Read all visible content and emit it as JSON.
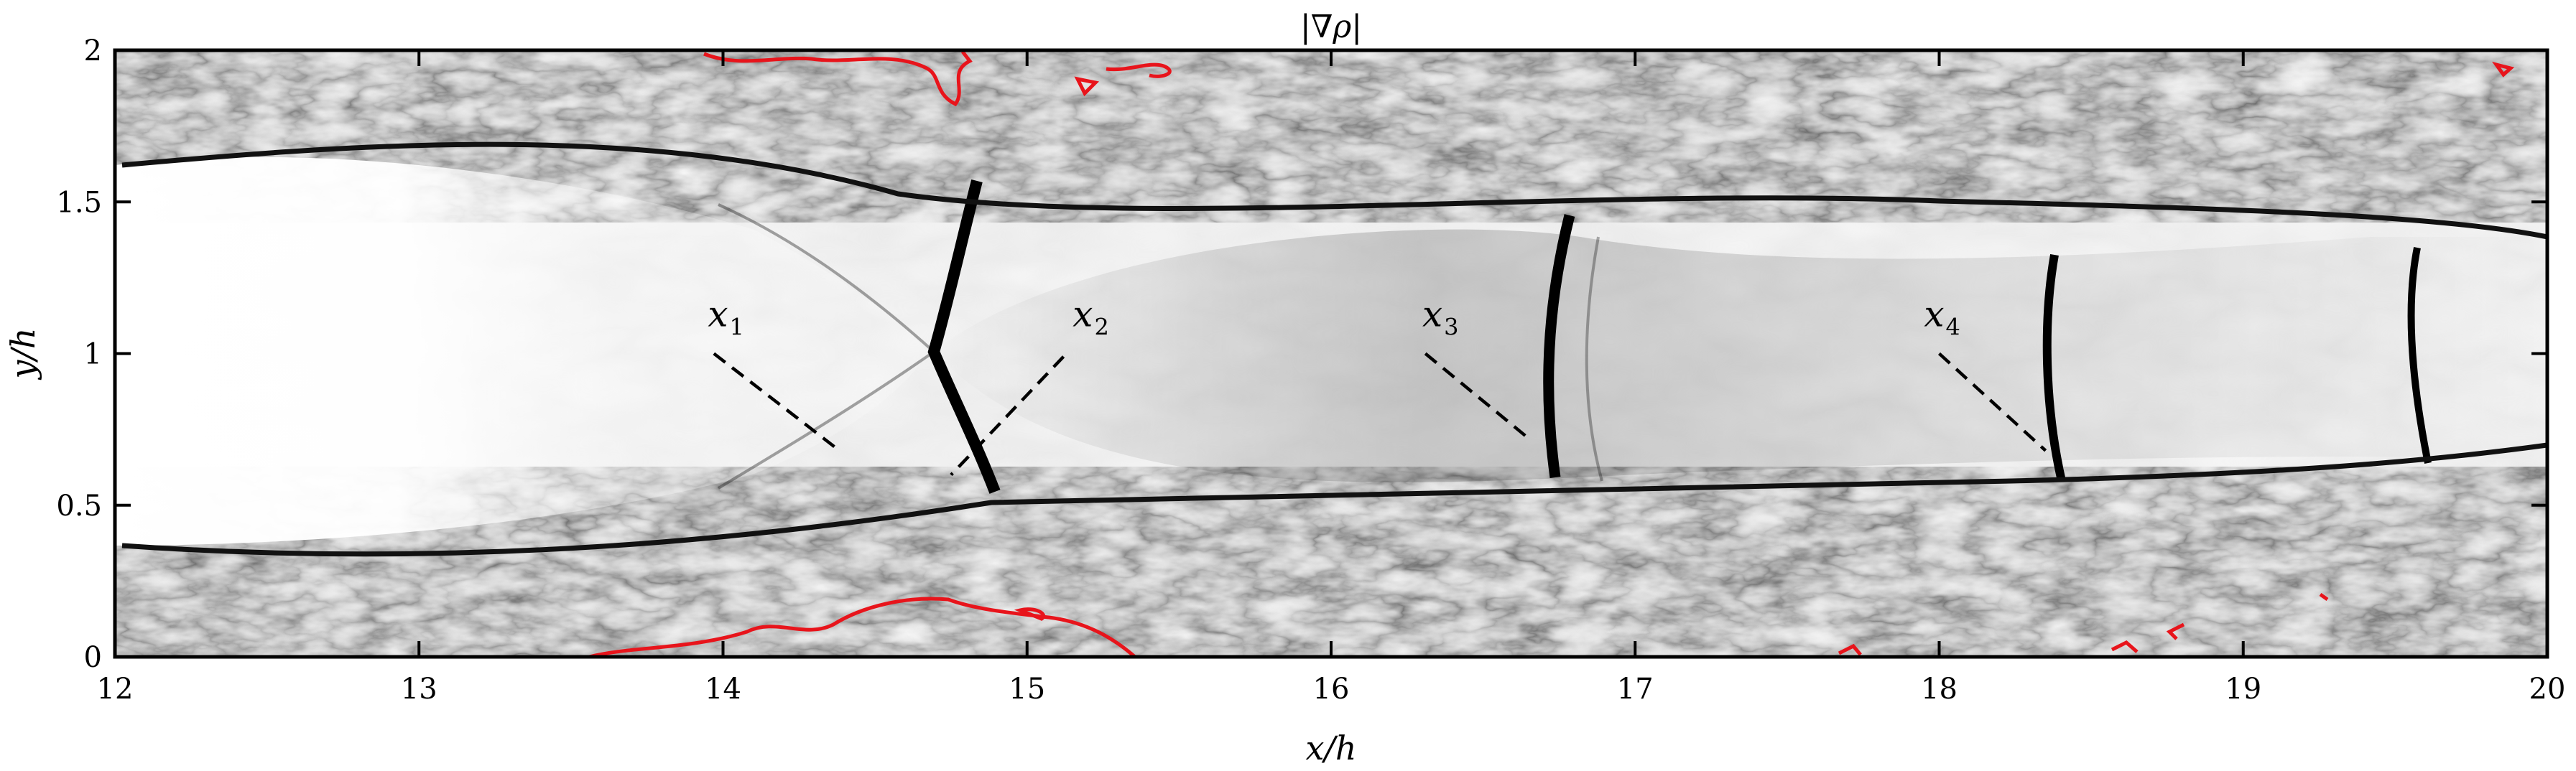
{
  "chart_data": {
    "type": "heatmap",
    "title": "|∇ρ|",
    "xlabel": "x/h",
    "ylabel": "y/h",
    "xlim": [
      12,
      20
    ],
    "ylim": [
      0,
      2
    ],
    "xticks": [
      12,
      13,
      14,
      15,
      16,
      17,
      18,
      19,
      20
    ],
    "xtick_labels": [
      "12",
      "13",
      "14",
      "15",
      "16",
      "17",
      "18",
      "19",
      "20"
    ],
    "yticks": [
      0,
      0.5,
      1,
      1.5,
      2
    ],
    "ytick_labels": [
      "0",
      "0.5",
      "1",
      "1.5",
      "2"
    ],
    "colormap": "grayscale (white = low, black = high)",
    "contour_color": "#e8141b",
    "grid": false,
    "annotations": [
      {
        "label": "x",
        "sub": "1",
        "text_x": 13.95,
        "text_y": 1.09,
        "line": {
          "x1": 13.97,
          "y1": 1.0,
          "x2": 14.37,
          "y2": 0.69
        }
      },
      {
        "label": "x",
        "sub": "2",
        "text_x": 15.15,
        "text_y": 1.09,
        "line": {
          "x1": 15.12,
          "y1": 0.99,
          "x2": 14.75,
          "y2": 0.6
        }
      },
      {
        "label": "x",
        "sub": "3",
        "text_x": 16.3,
        "text_y": 1.09,
        "line": {
          "x1": 16.31,
          "y1": 1.0,
          "x2": 16.65,
          "y2": 0.72
        }
      },
      {
        "label": "x",
        "sub": "4",
        "text_x": 17.95,
        "text_y": 1.09,
        "line": {
          "x1": 18.0,
          "y1": 1.0,
          "x2": 18.35,
          "y2": 0.68
        }
      }
    ]
  }
}
